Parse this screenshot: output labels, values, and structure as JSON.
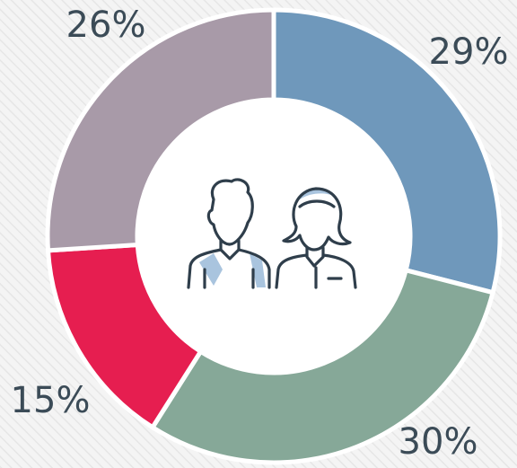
{
  "chart_data": {
    "type": "donut",
    "values": [
      29,
      30,
      15,
      26
    ],
    "value_labels": [
      "29%",
      "30%",
      "15%",
      "26%"
    ],
    "colors": [
      "#6f98bb",
      "#86a898",
      "#e61e50",
      "#a89aa8"
    ]
  }
}
